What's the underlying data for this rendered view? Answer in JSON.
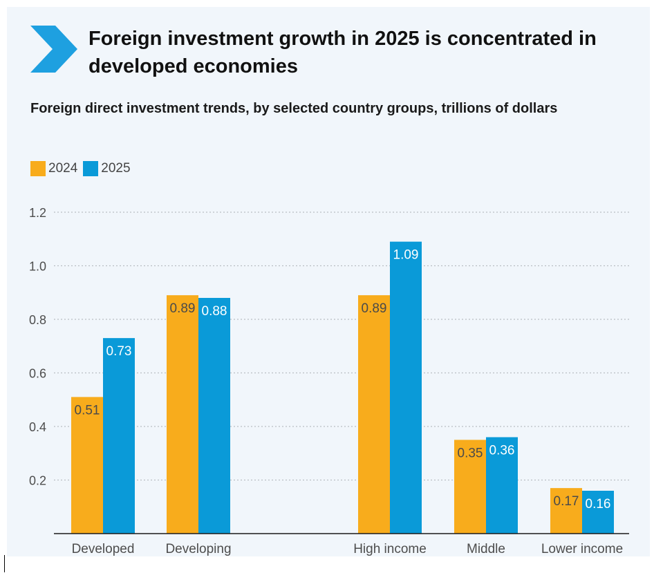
{
  "header": {
    "title": "Foreign investment growth in 2025 is concentrated in developed economies",
    "subtitle": "Foreign direct investment trends, by selected country groups, trillions of dollars",
    "icon": "chevron-right-icon"
  },
  "colors": {
    "series_2024": "#f8ac1c",
    "series_2025": "#0a9ad8",
    "accent": "#1ea0e0",
    "grid": "#b9bec3",
    "label_text": "#4d4d4d",
    "bar_label_on_2024": "#4a4a4a",
    "bar_label_on_2025": "#ffffff"
  },
  "legend": [
    {
      "name": "2024",
      "color": "#f8ac1c"
    },
    {
      "name": "2025",
      "color": "#0a9ad8"
    }
  ],
  "chart_data": {
    "type": "bar",
    "title": "Foreign investment growth in 2025 is concentrated in developed economies",
    "subtitle": "Foreign direct investment trends, by selected country groups, trillions of dollars",
    "xlabel": "",
    "ylabel": "",
    "categories": [
      "Developed",
      "Developing",
      "High income",
      "Middle",
      "Lower income"
    ],
    "series": [
      {
        "name": "2024",
        "values": [
          0.51,
          0.89,
          0.89,
          0.35,
          0.17
        ]
      },
      {
        "name": "2025",
        "values": [
          0.73,
          0.88,
          1.09,
          0.36,
          0.16
        ]
      }
    ],
    "data_labels": [
      [
        "0.51",
        "0.89",
        "0.89",
        "0.35",
        "0.17"
      ],
      [
        "0.73",
        "0.88",
        "1.09",
        "0.36",
        "0.16"
      ]
    ],
    "ylim": [
      0,
      1.2
    ],
    "yticks": [
      0.2,
      0.4,
      0.6,
      0.8,
      1.0,
      1.2
    ],
    "ytick_labels": [
      "0.2",
      "0.4",
      "0.6",
      "0.8",
      "1.0",
      "1.2"
    ],
    "grid": true,
    "legend_position": "top-left"
  }
}
